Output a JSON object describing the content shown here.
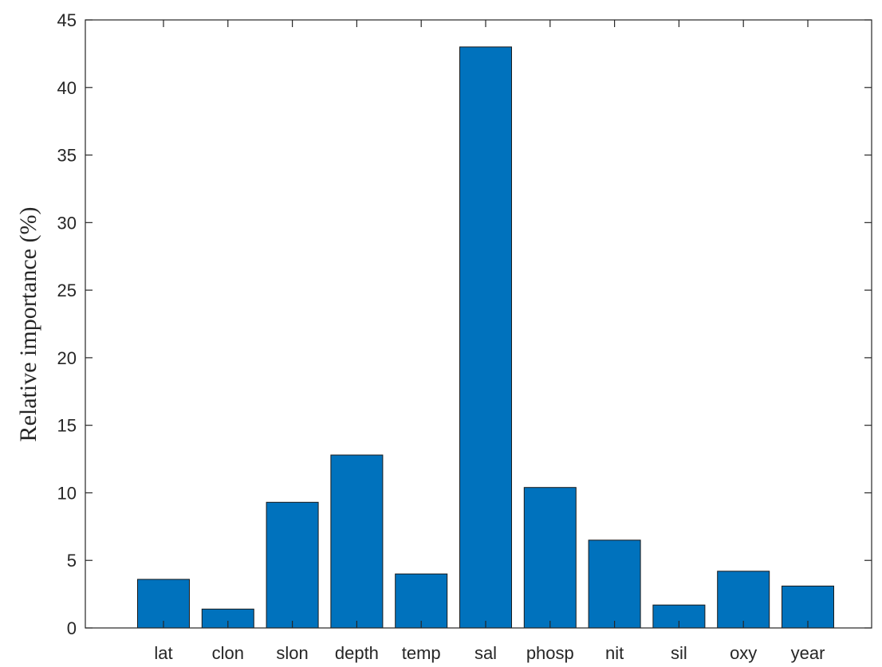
{
  "chart_data": {
    "type": "bar",
    "title": "",
    "xlabel": "",
    "ylabel": "Relative importance (%)",
    "categories": [
      "lat",
      "clon",
      "slon",
      "depth",
      "temp",
      "sal",
      "phosp",
      "nit",
      "sil",
      "oxy",
      "year"
    ],
    "values": [
      3.6,
      1.4,
      9.3,
      12.8,
      4.0,
      43.0,
      10.4,
      6.5,
      1.7,
      4.2,
      3.1
    ],
    "ylim": [
      0,
      45
    ],
    "yticks": [
      "0",
      "5",
      "10",
      "15",
      "20",
      "25",
      "30",
      "35",
      "40",
      "45"
    ],
    "bar_color": "#0072BD",
    "grid": false,
    "legend": "none"
  }
}
